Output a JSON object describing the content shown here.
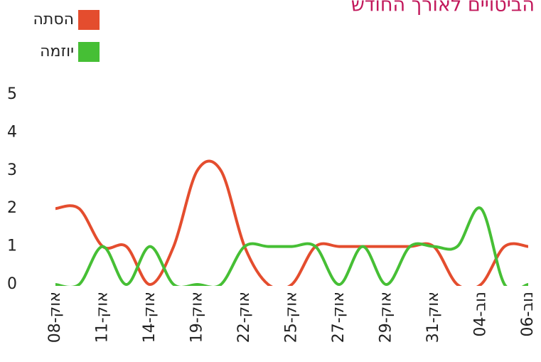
{
  "chart_data": {
    "type": "line",
    "title": "הביטויים לאורך החודש",
    "categories": [
      "08-אוק",
      null,
      "11-אוק",
      null,
      "14-אוק",
      null,
      "19-אוק",
      null,
      "22-אוק",
      null,
      "25-אוק",
      null,
      "27-אוק",
      null,
      "29-אוק",
      null,
      "31-אוק",
      null,
      "04-נוב",
      null,
      "06-נוב"
    ],
    "series": [
      {
        "name": "הסתה",
        "color": "#e44d2e",
        "values": [
          2,
          2,
          1,
          1,
          0,
          1,
          3,
          3,
          1,
          0,
          0,
          1,
          1,
          1,
          1,
          1,
          1,
          0,
          0,
          1,
          1
        ]
      },
      {
        "name": "יוזמה",
        "color": "#46bf35",
        "values": [
          0,
          0,
          1,
          0,
          1,
          0,
          0,
          0,
          1,
          1,
          1,
          1,
          0,
          1,
          0,
          1,
          1,
          1,
          2,
          0,
          0
        ]
      }
    ],
    "ylim": [
      0,
      5
    ],
    "yticks": [
      0,
      1,
      2,
      3,
      4,
      5
    ],
    "title_color": "#c2185b"
  }
}
